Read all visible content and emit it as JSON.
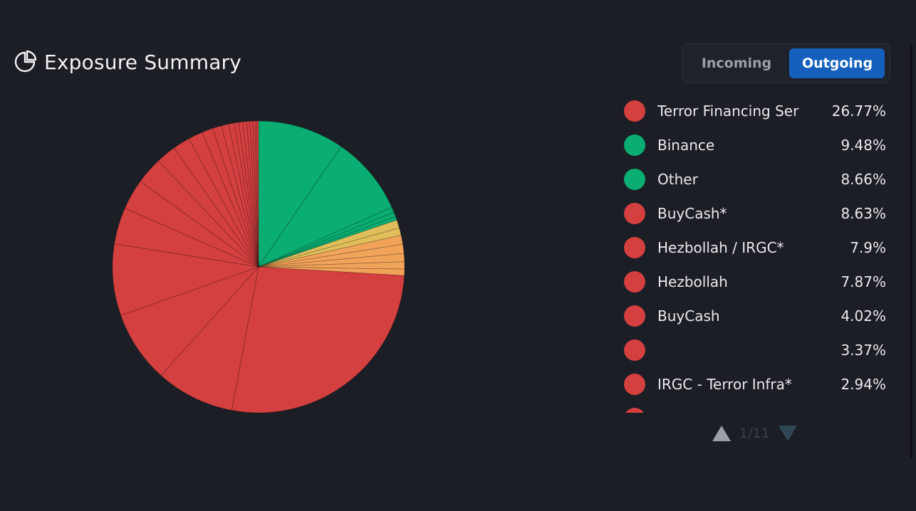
{
  "header": {
    "title": "Exposure Summary",
    "icon": "pie-chart-icon"
  },
  "toggle": {
    "incoming_label": "Incoming",
    "outgoing_label": "Outgoing",
    "active": "Outgoing"
  },
  "colors": {
    "red": "#d43f3f",
    "green": "#0aad72",
    "yellow": "#e0be5a",
    "orange": "#f2a35a",
    "accent": "#1560bd",
    "background": "#1b1e24"
  },
  "legend": {
    "items": [
      {
        "label": "Terror Financing Ser",
        "percent": "26.77%",
        "color": "#d43f3f"
      },
      {
        "label": "Binance",
        "percent": "9.48%",
        "color": "#0aad72"
      },
      {
        "label": "Other",
        "percent": "8.66%",
        "color": "#0aad72"
      },
      {
        "label": "BuyCash*",
        "percent": "8.63%",
        "color": "#d43f3f"
      },
      {
        "label": "Hezbollah / IRGC*",
        "percent": "7.9%",
        "color": "#d43f3f"
      },
      {
        "label": "Hezbollah",
        "percent": "7.87%",
        "color": "#d43f3f"
      },
      {
        "label": "BuyCash",
        "percent": "4.02%",
        "color": "#d43f3f"
      },
      {
        "label": "",
        "percent": "3.37%",
        "color": "#d43f3f"
      },
      {
        "label": "IRGC - Terror Infra*",
        "percent": "2.94%",
        "color": "#d43f3f"
      },
      {
        "label": "",
        "percent": "",
        "color": "#d43f3f"
      }
    ]
  },
  "pager": {
    "text": "1/11"
  },
  "chart_data": {
    "type": "pie",
    "slices": [
      {
        "value": 9.48,
        "color": "#0aad72"
      },
      {
        "value": 8.66,
        "color": "#0aad72"
      },
      {
        "value": 0.6,
        "color": "#0aad72"
      },
      {
        "value": 0.5,
        "color": "#0aad72"
      },
      {
        "value": 0.4,
        "color": "#0aad72"
      },
      {
        "value": 0.9,
        "color": "#e0be5a"
      },
      {
        "value": 0.8,
        "color": "#e0be5a"
      },
      {
        "value": 1.0,
        "color": "#f2a35a"
      },
      {
        "value": 1.0,
        "color": "#f2a35a"
      },
      {
        "value": 0.9,
        "color": "#f2a35a"
      },
      {
        "value": 0.8,
        "color": "#f2a35a"
      },
      {
        "value": 0.7,
        "color": "#f2a35a"
      },
      {
        "value": 26.77,
        "color": "#d43f3f"
      },
      {
        "value": 8.63,
        "color": "#d43f3f"
      },
      {
        "value": 7.9,
        "color": "#d43f3f"
      },
      {
        "value": 7.87,
        "color": "#d43f3f"
      },
      {
        "value": 4.02,
        "color": "#d43f3f"
      },
      {
        "value": 3.37,
        "color": "#d43f3f"
      },
      {
        "value": 2.94,
        "color": "#d43f3f"
      },
      {
        "value": 2.2,
        "color": "#d43f3f"
      },
      {
        "value": 1.9,
        "color": "#d43f3f"
      },
      {
        "value": 1.6,
        "color": "#d43f3f"
      },
      {
        "value": 1.2,
        "color": "#d43f3f"
      },
      {
        "value": 1.0,
        "color": "#d43f3f"
      },
      {
        "value": 0.8,
        "color": "#d43f3f"
      },
      {
        "value": 0.6,
        "color": "#d43f3f"
      },
      {
        "value": 0.5,
        "color": "#d43f3f"
      },
      {
        "value": 0.45,
        "color": "#d43f3f"
      },
      {
        "value": 0.4,
        "color": "#d43f3f"
      },
      {
        "value": 0.35,
        "color": "#d43f3f"
      },
      {
        "value": 0.3,
        "color": "#d43f3f"
      },
      {
        "value": 0.25,
        "color": "#d43f3f"
      },
      {
        "value": 0.2,
        "color": "#d43f3f"
      },
      {
        "value": 0.2,
        "color": "#d43f3f"
      }
    ]
  }
}
